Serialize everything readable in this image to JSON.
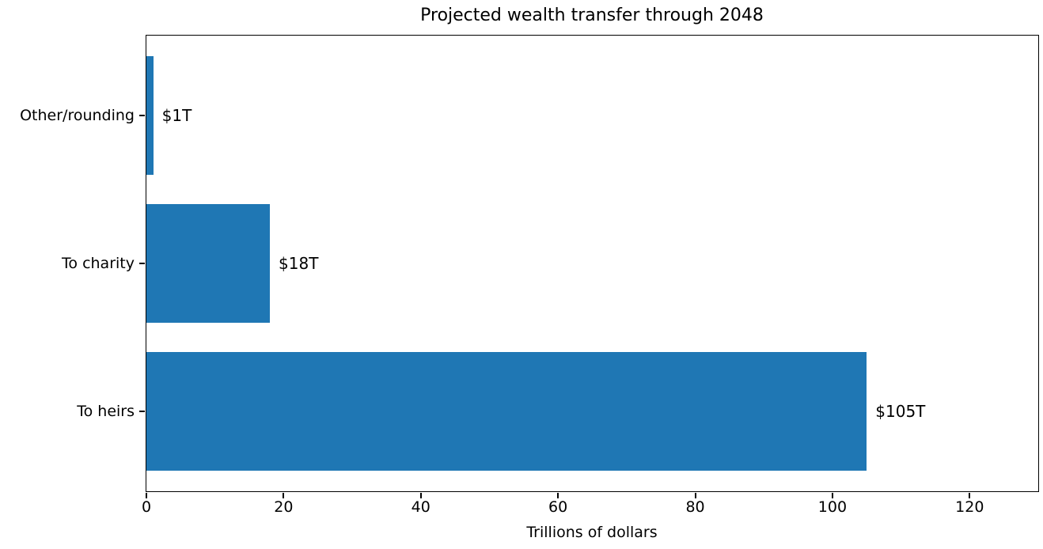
{
  "chart_data": {
    "type": "bar",
    "orientation": "horizontal",
    "title": "Projected wealth transfer through 2048",
    "xlabel": "Trillions of dollars",
    "ylabel": "",
    "categories": [
      "Other/rounding",
      "To charity",
      "To heirs"
    ],
    "values": [
      1,
      18,
      105
    ],
    "value_labels": [
      "$1T",
      "$18T",
      "$105T"
    ],
    "x_ticks": [
      0,
      20,
      40,
      60,
      80,
      100,
      120
    ],
    "xlim": [
      0,
      130
    ],
    "bar_color": "#1f77b4",
    "text_color": "#000000",
    "spine_color": "#000000",
    "grid": false,
    "legend": "none"
  }
}
